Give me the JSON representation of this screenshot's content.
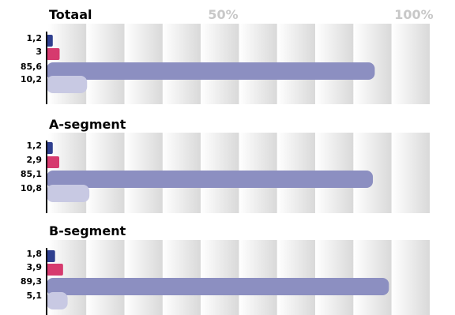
{
  "chart_data": [
    {
      "type": "bar",
      "orientation": "horizontal",
      "title": "Totaal",
      "categories": [
        "",
        "",
        "",
        ""
      ],
      "values": [
        1.2,
        3,
        85.6,
        10.2
      ],
      "value_labels": [
        "1,2",
        "3",
        "85,6",
        "10,2"
      ],
      "xlim": [
        0,
        100
      ],
      "x_tick_labels": [
        "50%",
        "100%"
      ],
      "x_tick_values": [
        50,
        100
      ],
      "bar_colors": [
        "#2f3f8f",
        "#d63a6e",
        "#8c8fc1",
        "#c8c9e3"
      ]
    },
    {
      "type": "bar",
      "orientation": "horizontal",
      "title": "A-segment",
      "categories": [
        "",
        "",
        "",
        ""
      ],
      "values": [
        1.2,
        2.9,
        85.1,
        10.8
      ],
      "value_labels": [
        "1,2",
        "2,9",
        "85,1",
        "10,8"
      ],
      "xlim": [
        0,
        100
      ],
      "bar_colors": [
        "#2f3f8f",
        "#d63a6e",
        "#8c8fc1",
        "#c8c9e3"
      ]
    },
    {
      "type": "bar",
      "orientation": "horizontal",
      "title": "B-segment",
      "categories": [
        "",
        "",
        "",
        ""
      ],
      "values": [
        1.8,
        3.9,
        89.3,
        5.1
      ],
      "value_labels": [
        "1,8",
        "3,9",
        "89,3",
        "5,1"
      ],
      "xlim": [
        0,
        100
      ],
      "bar_colors": [
        "#2f3f8f",
        "#d63a6e",
        "#8c8fc1",
        "#c8c9e3"
      ]
    }
  ],
  "colors": {
    "title": "#000000",
    "tick_labels": "#c8c8c8",
    "stripe_dark": "#d9d9d9",
    "stripe_light": "#ffffff"
  }
}
